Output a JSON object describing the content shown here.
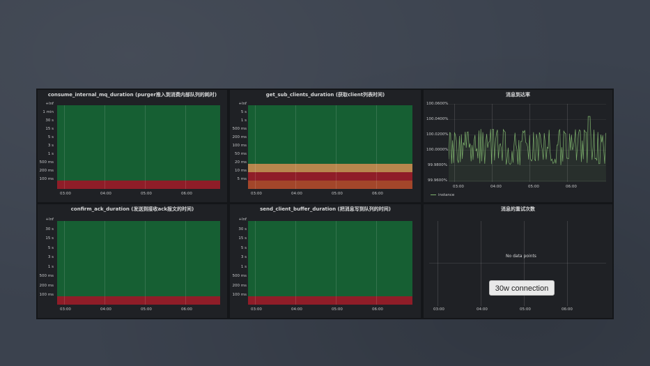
{
  "panels": [
    {
      "id": "p1",
      "title": "consume_internal_mq_duration (purger推入到消费内部队列的耗时)",
      "y_ticks": [
        "+Inf",
        "1 min",
        "30 s",
        "15 s",
        "5 s",
        "3 s",
        "1 s",
        "500 ms",
        "200 ms",
        "100 ms"
      ],
      "x_ticks": [
        "03:00",
        "04:00",
        "05:00",
        "06:00"
      ]
    },
    {
      "id": "p2",
      "title": "get_sub_clients_duration (获取client列表时间)",
      "y_ticks": [
        "+Inf",
        "5 s",
        "1 s",
        "500 ms",
        "200 ms",
        "100 ms",
        "50 ms",
        "20 ms",
        "10 ms",
        "5 ms"
      ],
      "x_ticks": [
        "03:00",
        "04:00",
        "05:00",
        "06:00"
      ]
    },
    {
      "id": "p3",
      "title": "消息到达率",
      "y_ticks": [
        "100.0600%",
        "100.0400%",
        "100.0200%",
        "100.0000%",
        "99.9800%",
        "99.9600%"
      ],
      "x_ticks": [
        "03:00",
        "04:00",
        "05:00",
        "06:00"
      ],
      "legend": "instance",
      "series_color": "#7eb26d"
    },
    {
      "id": "p4",
      "title": "confirm_ack_duration (发送到接收ack报文的时间)",
      "y_ticks": [
        "+Inf",
        "30 s",
        "15 s",
        "5 s",
        "3 s",
        "1 s",
        "500 ms",
        "200 ms",
        "100 ms"
      ],
      "x_ticks": [
        "03:00",
        "04:00",
        "05:00",
        "06:00"
      ]
    },
    {
      "id": "p5",
      "title": "send_client_buffer_duration (把消息写到队列的时间)",
      "y_ticks": [
        "+Inf",
        "30 s",
        "15 s",
        "5 s",
        "3 s",
        "1 s",
        "500 ms",
        "200 ms",
        "100 ms"
      ],
      "x_ticks": [
        "03:00",
        "04:00",
        "05:00",
        "06:00"
      ]
    },
    {
      "id": "p6",
      "title": "消息的重试次数",
      "x_ticks": [
        "03:00",
        "04:00",
        "05:00",
        "06:00"
      ],
      "no_data": "No data points"
    }
  ],
  "callout": "30w connection",
  "colors": {
    "heat_green": "#165f33",
    "heat_red": "#8f1d28",
    "heat_orange": "#b8864d",
    "line_green": "#7eb26d"
  }
}
